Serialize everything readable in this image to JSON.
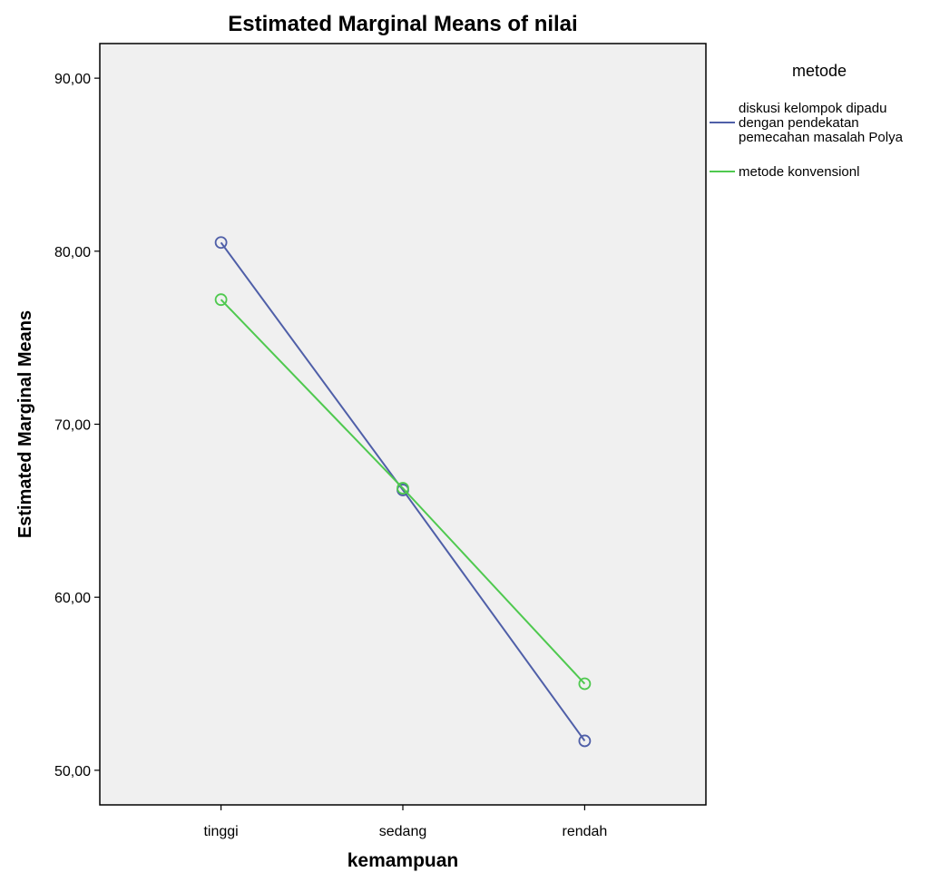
{
  "chart_data": {
    "type": "line",
    "title": "Estimated Marginal Means of nilai",
    "xlabel": "kemampuan",
    "ylabel": "Estimated Marginal Means",
    "categories": [
      "tinggi",
      "sedang",
      "rendah"
    ],
    "ylim": [
      48,
      92
    ],
    "yticks": [
      "50,00",
      "60,00",
      "70,00",
      "80,00",
      "90,00"
    ],
    "grid": false,
    "legend": {
      "title": "metode",
      "placement": "right"
    },
    "series": [
      {
        "name": "diskusi kelompok dipadu dengan pendekatan pemecahan masalah Polya",
        "name_lines": [
          "diskusi kelompok dipadu",
          "dengan pendekatan",
          "pemecahan masalah Polya"
        ],
        "color": "#4f5fa8",
        "values": [
          80.5,
          66.2,
          51.7
        ]
      },
      {
        "name": "metode konvensionl",
        "name_lines": [
          "metode konvensionl"
        ],
        "color": "#4fc94f",
        "values": [
          77.2,
          66.3,
          55.0
        ]
      }
    ]
  }
}
